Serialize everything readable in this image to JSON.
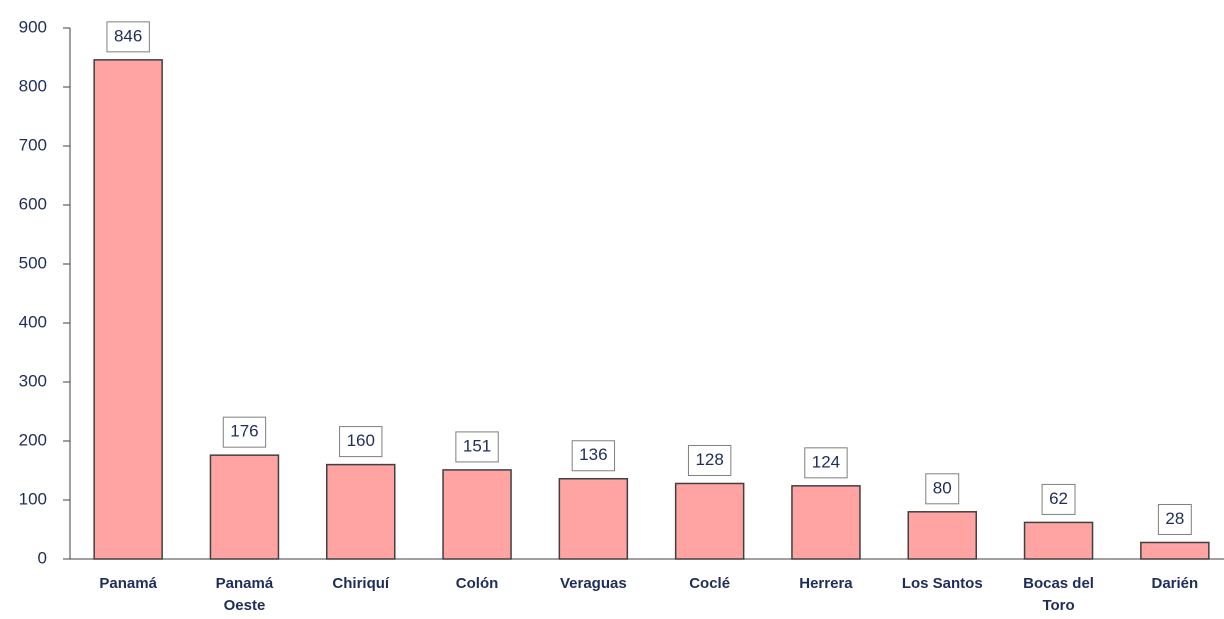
{
  "chart_data": {
    "type": "bar",
    "categories": [
      "Panamá",
      "Panamá Oeste",
      "Chiriquí",
      "Colón",
      "Veraguas",
      "Coclé",
      "Herrera",
      "Los Santos",
      "Bocas del Toro",
      "Darién"
    ],
    "values": [
      846,
      176,
      160,
      151,
      136,
      128,
      124,
      80,
      62,
      28
    ],
    "color": "#ffa3a3",
    "ylim": [
      0,
      900
    ],
    "yticks": [
      0,
      100,
      200,
      300,
      400,
      500,
      600,
      700,
      800,
      900
    ],
    "grid": false
  }
}
